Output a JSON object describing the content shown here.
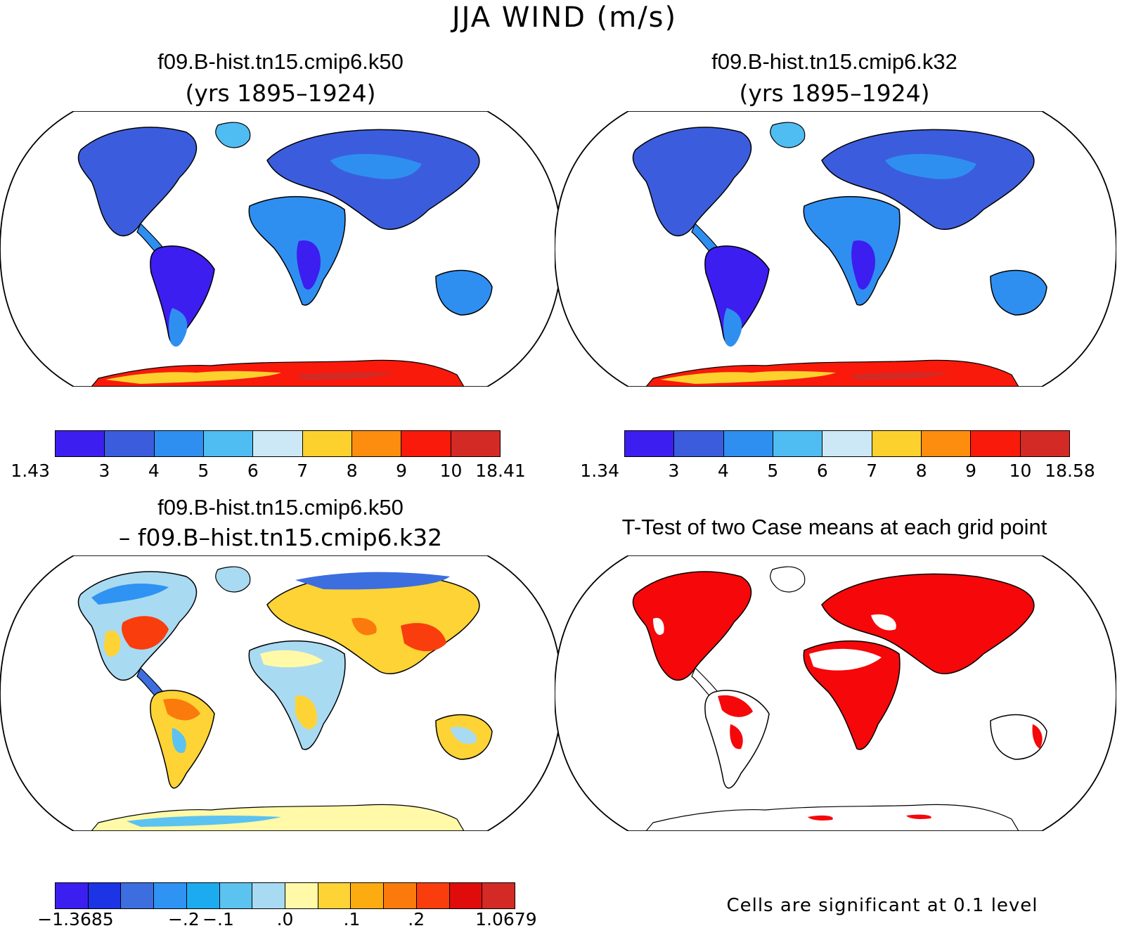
{
  "figure_title": "JJA WIND (m/s)",
  "panels": [
    {
      "title_bold": "f09.B-hist.tn15.cmip6.k50",
      "subtitle": "(yrs 1895–1924)",
      "colorbar": {
        "colors": [
          "#3d1ef0",
          "#3b5ddd",
          "#2f8ff0",
          "#4fbdf2",
          "#cce8f6",
          "#fdd12d",
          "#fd8d0f",
          "#f91a0b",
          "#d42a26"
        ],
        "labels": [
          "1.43",
          "3",
          "4",
          "5",
          "6",
          "7",
          "8",
          "9",
          "10",
          "18.41"
        ]
      }
    },
    {
      "title_bold": "f09.B-hist.tn15.cmip6.k32",
      "subtitle": "(yrs 1895–1924)",
      "colorbar": {
        "colors": [
          "#3d1ef0",
          "#3b5ddd",
          "#2f8ff0",
          "#4fbdf2",
          "#cce8f6",
          "#fdd12d",
          "#fd8d0f",
          "#f91a0b",
          "#d42a26"
        ],
        "labels": [
          "1.34",
          "3",
          "4",
          "5",
          "6",
          "7",
          "8",
          "9",
          "10",
          "18.58"
        ]
      }
    },
    {
      "title_bold": "f09.B-hist.tn15.cmip6.k50",
      "subtitle": "– f09.B–hist.tn15.cmip6.k32",
      "colorbar": {
        "colors": [
          "#3b1ff0",
          "#1c33e6",
          "#3c6ee0",
          "#2e93f2",
          "#1cabef",
          "#5cc2f0",
          "#a8daf2",
          "#fff9a8",
          "#fdd335",
          "#fcac10",
          "#fb7a0c",
          "#f93d0d",
          "#e00b0b",
          "#d32a26"
        ],
        "labels": [
          "−1.3685",
          "−.2",
          "−.1",
          ".0",
          ".1",
          ".2",
          "1.0679"
        ]
      }
    },
    {
      "title_bold": "T-Test of two Case means at each grid point",
      "footnote": "Cells are significant at 0.1 level"
    }
  ]
}
